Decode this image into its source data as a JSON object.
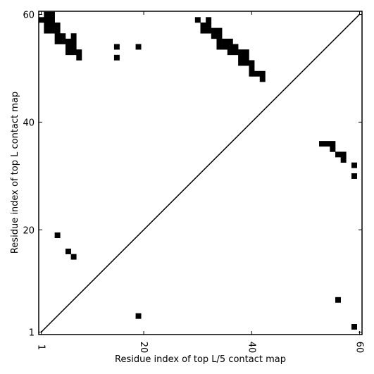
{
  "chart_data": {
    "type": "heatmap",
    "title": "",
    "xlabel": "Residue index of top L/5 contact map",
    "ylabel": "Residue index of top L contact map",
    "xlim": [
      1,
      60
    ],
    "ylim": [
      1,
      60
    ],
    "x_ticks": [
      1,
      20,
      40,
      60
    ],
    "y_ticks": [
      1,
      20,
      40,
      60
    ],
    "x_tick_labels": [
      "1",
      "20",
      "40",
      "60"
    ],
    "y_tick_labels": [
      "1",
      "20",
      "40",
      "60"
    ],
    "x_tick_rotation": -90,
    "diagonal": true,
    "grid": false,
    "cell_color": "#000000",
    "upper_contacts": [
      [
        1,
        59
      ],
      [
        2,
        60
      ],
      [
        3,
        60
      ],
      [
        2,
        59
      ],
      [
        3,
        59
      ],
      [
        2,
        58
      ],
      [
        3,
        58
      ],
      [
        4,
        58
      ],
      [
        2,
        57
      ],
      [
        3,
        57
      ],
      [
        4,
        57
      ],
      [
        4,
        56
      ],
      [
        5,
        56
      ],
      [
        7,
        56
      ],
      [
        4,
        55
      ],
      [
        5,
        55
      ],
      [
        6,
        55
      ],
      [
        7,
        55
      ],
      [
        6,
        54
      ],
      [
        7,
        54
      ],
      [
        6,
        53
      ],
      [
        7,
        53
      ],
      [
        8,
        53
      ],
      [
        8,
        52
      ],
      [
        15,
        54
      ],
      [
        19,
        54
      ],
      [
        15,
        52
      ],
      [
        30,
        59
      ],
      [
        32,
        59
      ],
      [
        31,
        58
      ],
      [
        32,
        58
      ],
      [
        31,
        57
      ],
      [
        32,
        57
      ],
      [
        33,
        57
      ],
      [
        34,
        57
      ],
      [
        33,
        56
      ],
      [
        34,
        56
      ],
      [
        34,
        55
      ],
      [
        35,
        55
      ],
      [
        36,
        55
      ],
      [
        34,
        54
      ],
      [
        35,
        54
      ],
      [
        36,
        54
      ],
      [
        37,
        54
      ],
      [
        36,
        53
      ],
      [
        37,
        53
      ],
      [
        38,
        53
      ],
      [
        39,
        53
      ],
      [
        38,
        52
      ],
      [
        39,
        52
      ],
      [
        38,
        51
      ],
      [
        39,
        51
      ],
      [
        40,
        51
      ],
      [
        40,
        50
      ],
      [
        40,
        49
      ],
      [
        41,
        49
      ],
      [
        42,
        49
      ],
      [
        42,
        48
      ]
    ],
    "right_contacts": [
      [
        53,
        36
      ],
      [
        54,
        36
      ],
      [
        55,
        36
      ],
      [
        55,
        35
      ],
      [
        56,
        34
      ],
      [
        57,
        34
      ],
      [
        57,
        33
      ],
      [
        59,
        32
      ],
      [
        59,
        30
      ]
    ],
    "lower_contacts": [
      [
        4,
        19
      ],
      [
        6,
        16
      ],
      [
        7,
        15
      ],
      [
        56,
        7
      ],
      [
        19,
        4
      ],
      [
        59,
        2
      ]
    ]
  }
}
